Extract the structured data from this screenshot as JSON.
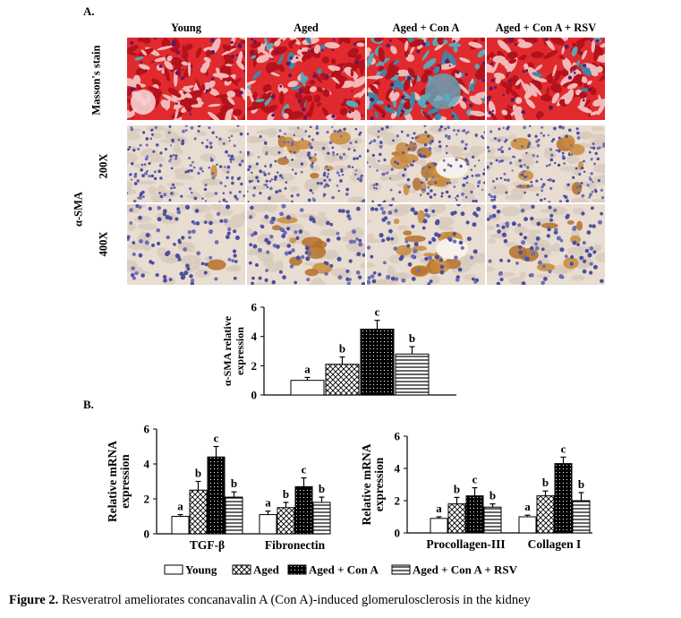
{
  "panel_a_label": "A.",
  "panel_b_label": "B.",
  "columns": [
    "Young",
    "Aged",
    "Aged + Con A",
    "Aged + Con A + RSV"
  ],
  "rows": {
    "massons": "Masson's stain",
    "asma": "α-SMA",
    "mag200": "200X",
    "mag400": "400X"
  },
  "legend": [
    "Young",
    "Aged",
    "Aged + Con A",
    "Aged + Con A + RSV"
  ],
  "caption": {
    "label": "Figure 2.",
    "text": "Resveratrol ameliorates concanavalin A (Con A)-induced glomerulosclerosis in the kidney"
  },
  "colors": {
    "collagen_blue": "#3a7fa0",
    "masson_red": "#d8232a",
    "stain_brown": "#c98a3a",
    "nuclei": "#4a4fa0"
  },
  "chart_data": [
    {
      "type": "bar",
      "title": "",
      "ylabel": "α-SMA relative expression",
      "ylim": [
        0,
        6
      ],
      "yticks": [
        0,
        2,
        4,
        6
      ],
      "categories": [
        ""
      ],
      "series": [
        {
          "name": "Young",
          "values": [
            1.0
          ],
          "errors": [
            0.2
          ],
          "letters": [
            "a"
          ]
        },
        {
          "name": "Aged",
          "values": [
            2.1
          ],
          "errors": [
            0.5
          ],
          "letters": [
            "b"
          ]
        },
        {
          "name": "Aged + Con A",
          "values": [
            4.5
          ],
          "errors": [
            0.6
          ],
          "letters": [
            "c"
          ]
        },
        {
          "name": "Aged + Con A + RSV",
          "values": [
            2.8
          ],
          "errors": [
            0.5
          ],
          "letters": [
            "b"
          ]
        }
      ]
    },
    {
      "type": "bar",
      "title": "",
      "ylabel": "Relative mRNA expression",
      "ylim": [
        0,
        6
      ],
      "yticks": [
        0,
        2,
        4,
        6
      ],
      "categories": [
        "TGF-β",
        "Fibronectin"
      ],
      "series": [
        {
          "name": "Young",
          "values": [
            1.0,
            1.1
          ],
          "errors": [
            0.1,
            0.2
          ],
          "letters": [
            "a",
            "a"
          ]
        },
        {
          "name": "Aged",
          "values": [
            2.5,
            1.5
          ],
          "errors": [
            0.5,
            0.3
          ],
          "letters": [
            "b",
            "b"
          ]
        },
        {
          "name": "Aged + Con A",
          "values": [
            4.4,
            2.7
          ],
          "errors": [
            0.6,
            0.5
          ],
          "letters": [
            "c",
            "c"
          ]
        },
        {
          "name": "Aged + Con A + RSV",
          "values": [
            2.1,
            1.8
          ],
          "errors": [
            0.3,
            0.3
          ],
          "letters": [
            "b",
            "b"
          ]
        }
      ]
    },
    {
      "type": "bar",
      "title": "",
      "ylabel": "Relative mRNA expression",
      "ylim": [
        0,
        6
      ],
      "yticks": [
        0,
        2,
        4,
        6
      ],
      "categories": [
        "Procollagen-III",
        "Collagen I"
      ],
      "series": [
        {
          "name": "Young",
          "values": [
            0.9,
            1.0
          ],
          "errors": [
            0.1,
            0.1
          ],
          "letters": [
            "a",
            "a"
          ]
        },
        {
          "name": "Aged",
          "values": [
            1.8,
            2.3
          ],
          "errors": [
            0.4,
            0.3
          ],
          "letters": [
            "b",
            "b"
          ]
        },
        {
          "name": "Aged + Con A",
          "values": [
            2.3,
            4.3
          ],
          "errors": [
            0.5,
            0.4
          ],
          "letters": [
            "c",
            "c"
          ]
        },
        {
          "name": "Aged + Con A + RSV",
          "values": [
            1.6,
            2.0
          ],
          "errors": [
            0.2,
            0.5
          ],
          "letters": [
            "b",
            "b"
          ]
        }
      ]
    }
  ]
}
